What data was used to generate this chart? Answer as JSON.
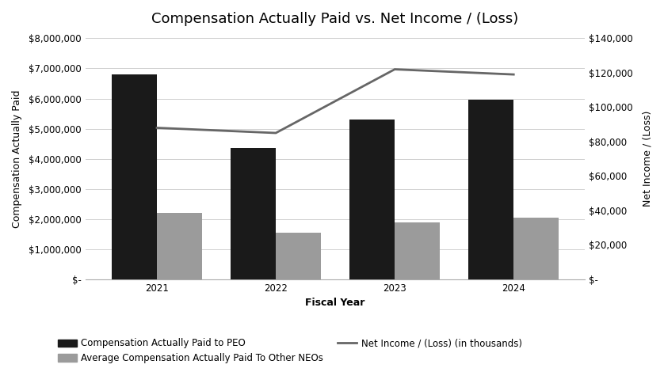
{
  "title": "Compensation Actually Paid vs. Net Income / (Loss)",
  "fiscal_years": [
    "2021",
    "2022",
    "2023",
    "2024"
  ],
  "peo_values": [
    6800000,
    4350000,
    5300000,
    5950000
  ],
  "neo_values": [
    2200000,
    1550000,
    1900000,
    2050000
  ],
  "net_income_thousands": [
    88000,
    85000,
    122000,
    119000
  ],
  "left_ylim": [
    0,
    8000000
  ],
  "right_ylim": [
    0,
    140000
  ],
  "left_yticks": [
    0,
    1000000,
    2000000,
    3000000,
    4000000,
    5000000,
    6000000,
    7000000,
    8000000
  ],
  "right_yticks": [
    0,
    20000,
    40000,
    60000,
    80000,
    100000,
    120000,
    140000
  ],
  "left_ytick_labels": [
    "$-",
    "$1,000,000",
    "$2,000,000",
    "$3,000,000",
    "$4,000,000",
    "$5,000,000",
    "$6,000,000",
    "$7,000,000",
    "$8,000,000"
  ],
  "right_ytick_labels": [
    "$-",
    "$20,000",
    "$40,000",
    "$60,000",
    "$80,000",
    "$100,000",
    "$120,000",
    "$140,000"
  ],
  "xlabel": "Fiscal Year",
  "ylabel_left": "Compensation Actually Paid",
  "ylabel_right": "Net Income / (Loss)",
  "bar_color_peo": "#1a1a1a",
  "bar_color_neo": "#9b9b9b",
  "line_color": "#666666",
  "bar_width": 0.38,
  "legend_label_peo": "Compensation Actually Paid to PEO",
  "legend_label_neo": "Average Compensation Actually Paid To Other NEOs",
  "legend_label_line": "Net Income / (Loss) (in thousands)",
  "background_color": "#ffffff",
  "grid_color": "#d0d0d0",
  "title_fontsize": 13,
  "axis_label_fontsize": 9,
  "tick_fontsize": 8.5,
  "legend_fontsize": 8.5
}
